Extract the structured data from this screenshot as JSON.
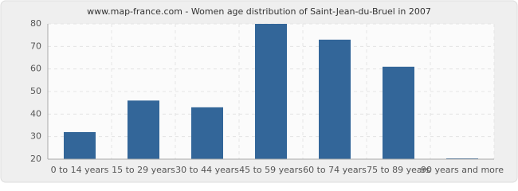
{
  "chart_data": {
    "type": "bar",
    "title": "www.map-france.com - Women age distribution of Saint-Jean-du-Bruel in 2007",
    "categories": [
      "0 to 14 years",
      "15 to 29 years",
      "30 to 44 years",
      "45 to 59 years",
      "60 to 74 years",
      "75 to 89 years",
      "90 years and more"
    ],
    "values": [
      32,
      46,
      43,
      80,
      73,
      61,
      20
    ],
    "color": "#336699",
    "ylim": [
      20,
      80
    ],
    "yticks": [
      20,
      30,
      40,
      50,
      60,
      70,
      80
    ],
    "grid": true
  }
}
